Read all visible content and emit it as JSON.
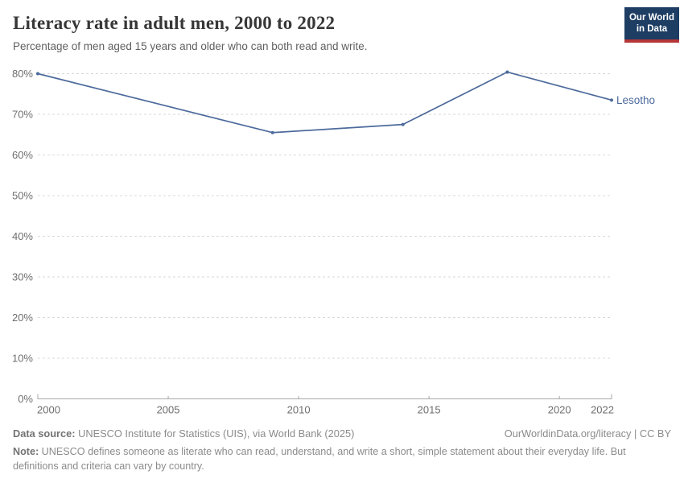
{
  "header": {
    "title": "Literacy rate in adult men, 2000 to 2022",
    "subtitle": "Percentage of men aged 15 years and older who can both read and write.",
    "logo": {
      "line1": "Our World",
      "line2": "in Data",
      "bg_color": "#1d3d63",
      "bar_color": "#b63638"
    }
  },
  "chart_data": {
    "type": "line",
    "title": "Literacy rate in adult men, 2000 to 2022",
    "subtitle": "Percentage of men aged 15 years and older who can both read and write.",
    "xlabel": "",
    "ylabel": "",
    "xlim": [
      2000,
      2022
    ],
    "ylim": [
      0,
      80
    ],
    "x_ticks": [
      2000,
      2005,
      2010,
      2015,
      2020,
      2022
    ],
    "y_ticks": [
      0,
      10,
      20,
      30,
      40,
      50,
      60,
      70,
      80
    ],
    "y_tick_suffix": "%",
    "grid": "horizontal-dashed",
    "legend_position": "end-of-line-label",
    "series": [
      {
        "name": "Lesotho",
        "color": "#4C6A9C",
        "points": [
          {
            "year": 2000,
            "value": 80.0
          },
          {
            "year": 2009,
            "value": 65.5
          },
          {
            "year": 2014,
            "value": 67.5
          },
          {
            "year": 2018,
            "value": 80.4
          },
          {
            "year": 2022,
            "value": 73.5
          }
        ]
      }
    ],
    "colors": {
      "gridline": "#d9d9d9",
      "axis_line": "#a8a8a8",
      "tick_label": "#6e6e6e"
    }
  },
  "footer": {
    "source_label": "Data source:",
    "source_text": " UNESCO Institute for Statistics (UIS), via World Bank (2025)",
    "rights": "OurWorldinData.org/literacy | CC BY",
    "note_label": "Note:",
    "note_text": " UNESCO defines someone as literate who can read, understand, and write a short, simple statement about their everyday life. But definitions and criteria can vary by country."
  }
}
